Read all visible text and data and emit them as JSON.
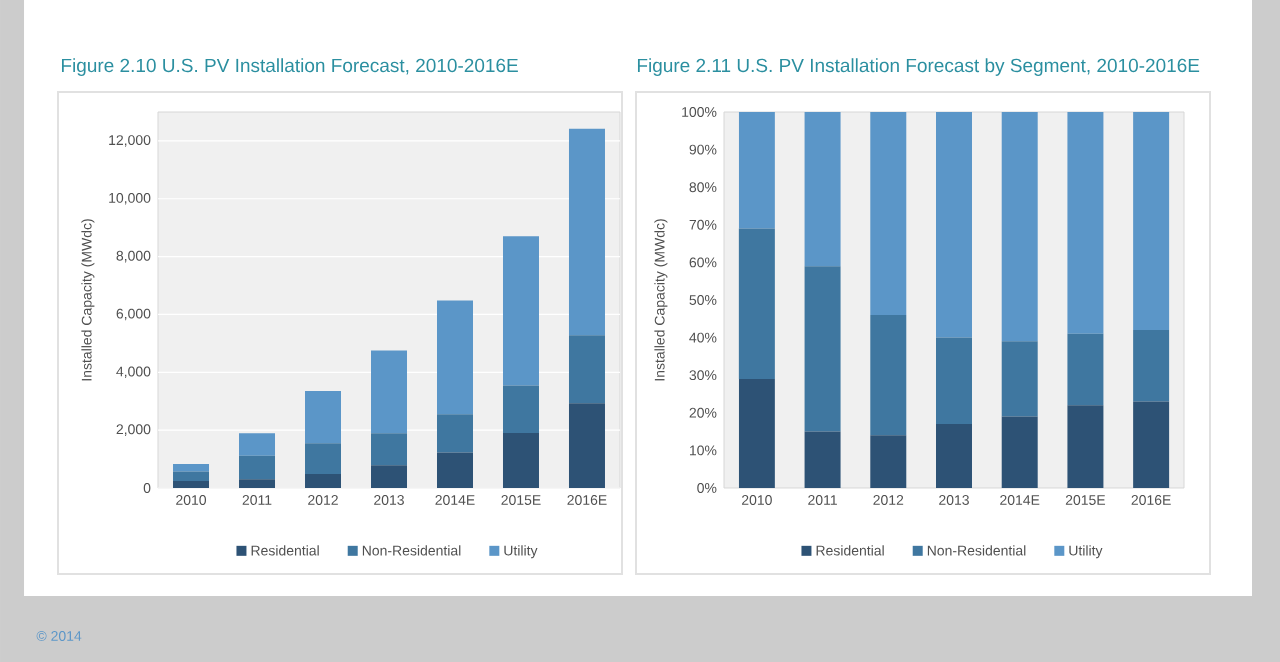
{
  "chart_data": [
    {
      "type": "bar",
      "title": "Figure 2.10  U.S. PV Installation Forecast, 2010-2016E",
      "ylabel": "Installed Capacity (MWdc)",
      "categories": [
        "2010",
        "2011",
        "2012",
        "2013",
        "2014E",
        "2015E",
        "2016E"
      ],
      "stacked": true,
      "series": [
        {
          "name": "Residential",
          "color": "#2d5275",
          "values": [
            240,
            300,
            480,
            790,
            1230,
            1900,
            2930
          ]
        },
        {
          "name": "Non-Residential",
          "color": "#3f77a0",
          "values": [
            330,
            810,
            1070,
            1100,
            1320,
            1640,
            2350
          ]
        },
        {
          "name": "Utility",
          "color": "#5b96c8",
          "values": [
            260,
            780,
            1800,
            2860,
            3930,
            5160,
            7140
          ]
        }
      ],
      "ylim": [
        0,
        13000
      ],
      "yticks": [
        0,
        {
          "value": 2000,
          "label": "2,000"
        },
        {
          "value": 4000,
          "label": "4,000"
        },
        {
          "value": 6000,
          "label": "6,000"
        },
        {
          "value": 8000,
          "label": "8,000"
        },
        {
          "value": 10000,
          "label": "10,000"
        },
        {
          "value": 12000,
          "label": "12,000"
        }
      ],
      "grid": "y",
      "legend": "bottom",
      "annotations": [
        "© 2014"
      ]
    },
    {
      "type": "bar",
      "title": "Figure 2.11  U.S. PV Installation Forecast by Segment, 2010-2016E",
      "ylabel": "Installed Capacity (MWdc)",
      "categories": [
        "2010",
        "2011",
        "2012",
        "2013",
        "2014E",
        "2015E",
        "2016E"
      ],
      "stacked": true,
      "series": [
        {
          "name": "Residential",
          "color": "#2d5275",
          "values": [
            29,
            15,
            14,
            17,
            19,
            22,
            23
          ]
        },
        {
          "name": "Non-Residential",
          "color": "#3f77a0",
          "values": [
            40,
            44,
            32,
            23,
            20,
            19,
            19
          ]
        },
        {
          "name": "Utility",
          "color": "#5b96c8",
          "values": [
            31,
            41,
            54,
            60,
            61,
            59,
            58
          ]
        }
      ],
      "ylim": [
        0,
        100
      ],
      "yticks": [
        {
          "value": 0,
          "label": "0%"
        },
        {
          "value": 10,
          "label": "10%"
        },
        {
          "value": 20,
          "label": "20%"
        },
        {
          "value": 30,
          "label": "30%"
        },
        {
          "value": 40,
          "label": "40%"
        },
        {
          "value": 50,
          "label": "50%"
        },
        {
          "value": 60,
          "label": "60%"
        },
        {
          "value": 70,
          "label": "70%"
        },
        {
          "value": 80,
          "label": "80%"
        },
        {
          "value": 90,
          "label": "90%"
        },
        {
          "value": 100,
          "label": "100%"
        }
      ],
      "legend": "bottom"
    }
  ]
}
